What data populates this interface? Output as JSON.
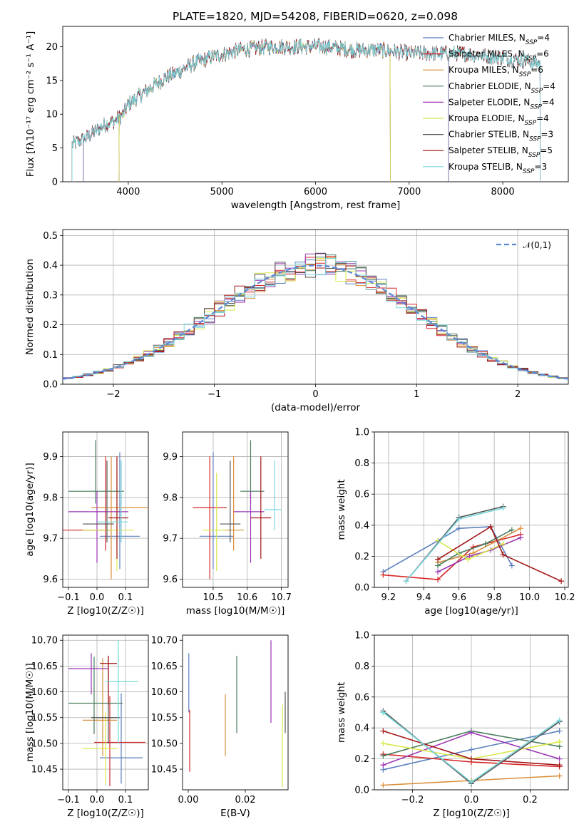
{
  "figure": {
    "title": "PLATE=1820, MJD=54208, FIBERID=0620, z=0.098"
  },
  "colors": {
    "c0": "#5b7fbf",
    "c1": "#d62728",
    "c2": "#d98f3a",
    "c3": "#4b7d5e",
    "c4": "#9b36b5",
    "c5": "#d8e84a",
    "c6": "#555555",
    "c7": "#a31515",
    "c8": "#7ad8dc",
    "gauss": "#5b87d6"
  },
  "chart_data": [
    {
      "id": "spectrum",
      "type": "line",
      "title": "PLATE=1820, MJD=54208, FIBERID=0620, z=0.098",
      "xlabel": "wavelength [Angstrom, rest frame]",
      "ylabel": "Flux [fλ10⁻¹⁷ erg cm⁻² s⁻¹ A⁻¹]",
      "xlim": [
        3300,
        8700
      ],
      "ylim": [
        0,
        23
      ],
      "xticks": [
        4000,
        5000,
        6000,
        7000,
        8000
      ],
      "yticks": [
        0,
        5,
        10,
        15,
        20
      ],
      "grid": false,
      "legend_position": "right",
      "legend": [
        "Chabrier MILES, N_SSP=4",
        "Salpeter MILES, N_SSP=6",
        "Kroupa MILES, N_SSP=6",
        "Chabrier ELODIE, N_SSP=4",
        "Salpeter ELODIE, N_SSP=4",
        "Kroupa ELODIE, N_SSP=4",
        "Chabrier STELIB, N_SSP=3",
        "Salpeter STELIB, N_SSP=5",
        "Kroupa STELIB, N_SSP=3"
      ],
      "continuum": {
        "x": [
          3400,
          3550,
          3650,
          3750,
          3850,
          3950,
          4000,
          4100,
          4250,
          4400,
          4500,
          4700,
          4900,
          5200,
          5500,
          5800,
          6100,
          6400,
          6700,
          7000,
          7300,
          7600,
          7900,
          8200,
          8400
        ],
        "y": [
          5.5,
          6.5,
          7.5,
          8.5,
          9.0,
          10.0,
          11.5,
          12.5,
          14.0,
          15.5,
          16.0,
          17.5,
          18.5,
          19.5,
          20.0,
          20.0,
          20.0,
          19.5,
          19.5,
          19.0,
          19.0,
          19.0,
          18.5,
          18.0,
          17.5
        ]
      },
      "model_ranges": [
        [
          3520,
          7420
        ],
        [
          3520,
          7420
        ],
        [
          3520,
          7420
        ],
        [
          3900,
          6800
        ],
        [
          3900,
          6800
        ],
        [
          3900,
          6800
        ],
        [
          3400,
          8400
        ],
        [
          3400,
          8400
        ],
        [
          3400,
          8400
        ]
      ]
    },
    {
      "id": "residual_hist",
      "type": "line",
      "xlabel": "(data-model)/error",
      "ylabel": "Normed distribution",
      "xlim": [
        -2.5,
        2.5
      ],
      "ylim": [
        0,
        0.52
      ],
      "xticks": [
        -2,
        -1,
        0,
        1,
        2
      ],
      "yticks": [
        0,
        0.1,
        0.2,
        0.3,
        0.4,
        0.5
      ],
      "grid": true,
      "legend_position": "upper right",
      "legend": [
        "𝒩(0,1)"
      ],
      "bin_width": 0.1,
      "note_values": "per-bin normalized counts for 9 model fits, centred on the standard normal density"
    },
    {
      "id": "age_vs_Z",
      "type": "scatter",
      "xlabel": "Z [log10(Z/Z☉)]",
      "ylabel": "age  [log10(age/yr)]",
      "xlim": [
        -0.12,
        0.18
      ],
      "ylim": [
        9.58,
        9.96
      ],
      "xticks": [
        -0.1,
        0.0,
        0.1
      ],
      "yticks": [
        9.6,
        9.7,
        9.8,
        9.9
      ],
      "grid": true,
      "points": [
        {
          "x": 0.08,
          "xerr": [
            0.07,
            0.07
          ],
          "y": 9.705,
          "yerr": [
            0.08,
            0.205
          ]
        },
        {
          "x": 0.03,
          "xerr": [
            0.15,
            0.02
          ],
          "y": 9.72,
          "yerr": [
            0.05,
            0.18
          ]
        },
        {
          "x": 0.05,
          "xerr": [
            0.07,
            0.13
          ],
          "y": 9.775,
          "yerr": [
            0.175,
            0.125
          ]
        },
        {
          "x": -0.005,
          "xerr": [
            0.095,
            0.1
          ],
          "y": 9.815,
          "yerr": [
            0.03,
            0.125
          ]
        },
        {
          "x": 0.0,
          "xerr": [
            0.1,
            0.11
          ],
          "y": 9.765,
          "yerr": [
            0.125,
            0.05
          ]
        },
        {
          "x": 0.07,
          "xerr": [
            0.12,
            0.06
          ],
          "y": 9.72,
          "yerr": [
            0.1,
            0.14
          ]
        },
        {
          "x": 0.035,
          "xerr": [
            0.085,
            0.025
          ],
          "y": 9.735,
          "yerr": [
            0.045,
            0.155
          ]
        },
        {
          "x": 0.07,
          "xerr": [
            0.03,
            0.04
          ],
          "y": 9.75,
          "yerr": [
            0.1,
            0.15
          ]
        },
        {
          "x": 0.085,
          "xerr": [
            0.085,
            0.025
          ],
          "y": 9.74,
          "yerr": [
            0.05,
            0.15
          ]
        }
      ]
    },
    {
      "id": "age_vs_mass",
      "type": "scatter",
      "xlabel": "mass [log10(M/M☉)]",
      "ylabel": "",
      "xlim": [
        10.41,
        10.72
      ],
      "ylim": [
        9.58,
        9.96
      ],
      "xticks": [
        10.5,
        10.6,
        10.7
      ],
      "yticks": [
        9.6,
        9.7,
        9.8,
        9.9
      ],
      "grid": true,
      "points": [
        {
          "x": 10.5,
          "xerr": [
            0.04,
            0.06
          ],
          "y": 9.705,
          "yerr": [
            0.08,
            0.205
          ]
        },
        {
          "x": 10.49,
          "xerr": [
            0.05,
            0.05
          ],
          "y": 9.775,
          "yerr": [
            0.175,
            0.125
          ]
        },
        {
          "x": 10.56,
          "xerr": [
            0.03,
            0.03
          ],
          "y": 9.72,
          "yerr": [
            0.05,
            0.18
          ]
        },
        {
          "x": 10.61,
          "xerr": [
            0.03,
            0.04
          ],
          "y": 9.815,
          "yerr": [
            0.03,
            0.125
          ]
        },
        {
          "x": 10.61,
          "xerr": [
            0.05,
            0.04
          ],
          "y": 9.765,
          "yerr": [
            0.125,
            0.05
          ]
        },
        {
          "x": 10.51,
          "xerr": [
            0.04,
            0.03
          ],
          "y": 9.72,
          "yerr": [
            0.1,
            0.14
          ]
        },
        {
          "x": 10.55,
          "xerr": [
            0.03,
            0.03
          ],
          "y": 9.735,
          "yerr": [
            0.045,
            0.155
          ]
        },
        {
          "x": 10.64,
          "xerr": [
            0.03,
            0.03
          ],
          "y": 9.75,
          "yerr": [
            0.1,
            0.15
          ]
        },
        {
          "x": 10.68,
          "xerr": [
            0.03,
            0.02
          ],
          "y": 9.77,
          "yerr": [
            0.05,
            0.12
          ]
        }
      ]
    },
    {
      "id": "massweight_vs_age",
      "type": "line",
      "xlabel": "age  [log10(age/yr)]",
      "ylabel": "mass weight",
      "xlim": [
        9.12,
        10.22
      ],
      "ylim": [
        0,
        1.0
      ],
      "xticks": [
        9.2,
        9.4,
        9.6,
        9.8,
        10.0,
        10.2
      ],
      "yticks": [
        0,
        0.2,
        0.4,
        0.6,
        0.8,
        1.0
      ],
      "grid": true,
      "series": [
        {
          "x": [
            9.17,
            9.48,
            9.6,
            9.78,
            9.9
          ],
          "y": [
            0.1,
            0.3,
            0.38,
            0.39,
            0.14
          ]
        },
        {
          "x": [
            9.17,
            9.48,
            9.68,
            9.95
          ],
          "y": [
            0.08,
            0.05,
            0.26,
            0.34
          ]
        },
        {
          "x": [
            9.48,
            9.68,
            9.95
          ],
          "y": [
            0.16,
            0.22,
            0.38
          ]
        },
        {
          "x": [
            9.48,
            9.6,
            9.75,
            9.9
          ],
          "y": [
            0.14,
            0.22,
            0.28,
            0.37
          ]
        },
        {
          "x": [
            9.48,
            9.66,
            9.78,
            9.95
          ],
          "y": [
            0.1,
            0.2,
            0.24,
            0.32
          ]
        },
        {
          "x": [
            9.48,
            9.65,
            9.85
          ],
          "y": [
            0.3,
            0.18,
            0.28
          ]
        },
        {
          "x": [
            9.3,
            9.6,
            9.85
          ],
          "y": [
            0.04,
            0.45,
            0.52
          ]
        },
        {
          "x": [
            9.48,
            9.78,
            9.85,
            10.18
          ],
          "y": [
            0.18,
            0.39,
            0.21,
            0.04
          ]
        },
        {
          "x": [
            9.3,
            9.6,
            9.85
          ],
          "y": [
            0.04,
            0.44,
            0.51
          ]
        }
      ]
    },
    {
      "id": "mass_vs_Z",
      "type": "scatter",
      "xlabel": "Z [log10(Z/Z☉)]",
      "ylabel": "mass [log10(M/M☉)]",
      "xlim": [
        -0.12,
        0.18
      ],
      "ylim": [
        10.41,
        10.71
      ],
      "xticks": [
        -0.1,
        0.0,
        0.1
      ],
      "yticks": [
        10.45,
        10.5,
        10.55,
        10.6,
        10.65,
        10.7
      ],
      "grid": true,
      "points": [
        {
          "x": 0.085,
          "xerr": [
            0.075,
            0.075
          ],
          "y": 10.472,
          "yerr": [
            0.05,
            0.125
          ]
        },
        {
          "x": 0.045,
          "xerr": [
            0.055,
            0.125
          ],
          "y": 10.502,
          "yerr": [
            0.085,
            0.09
          ]
        },
        {
          "x": 0.02,
          "xerr": [
            0.07,
            0.05
          ],
          "y": 10.545,
          "yerr": [
            0.07,
            0.12
          ]
        },
        {
          "x": -0.01,
          "xerr": [
            0.09,
            0.1
          ],
          "y": 10.578,
          "yerr": [
            0.06,
            0.09
          ]
        },
        {
          "x": -0.02,
          "xerr": [
            0.08,
            0.06
          ],
          "y": 10.645,
          "yerr": [
            0.05,
            0.03
          ]
        },
        {
          "x": 0.03,
          "xerr": [
            0.08,
            0.04
          ],
          "y": 10.49,
          "yerr": [
            0.07,
            0.07
          ]
        },
        {
          "x": 0.04,
          "xerr": [
            0.06,
            0.04
          ],
          "y": 10.55,
          "yerr": [
            0.05,
            0.12
          ]
        },
        {
          "x": 0.04,
          "xerr": [
            0.03,
            0.03
          ],
          "y": 10.655,
          "yerr": [
            0.08,
            0.015
          ]
        },
        {
          "x": 0.075,
          "xerr": [
            0.045,
            0.07
          ],
          "y": 10.62,
          "yerr": [
            0.12,
            0.08
          ]
        }
      ]
    },
    {
      "id": "mass_vs_ebv",
      "type": "scatter",
      "xlabel": "E(B-V)",
      "ylabel": "",
      "xlim": [
        -0.002,
        0.035
      ],
      "ylim": [
        10.41,
        10.71
      ],
      "xticks": [
        0.0,
        0.02
      ],
      "yticks": [
        10.45,
        10.5,
        10.55,
        10.6,
        10.65,
        10.7
      ],
      "grid": false,
      "points": [
        {
          "x": 0.0002,
          "y": 10.62,
          "yerr": [
            0.06,
            0.055
          ]
        },
        {
          "x": 0.0005,
          "y": 10.505,
          "yerr": [
            0.06,
            0.06
          ]
        },
        {
          "x": 0.013,
          "y": 10.535,
          "yerr": [
            0.06,
            0.06
          ]
        },
        {
          "x": 0.017,
          "y": 10.59,
          "yerr": [
            0.07,
            0.08
          ]
        },
        {
          "x": 0.029,
          "y": 10.62,
          "yerr": [
            0.08,
            0.08
          ]
        },
        {
          "x": 0.033,
          "y": 10.495,
          "yerr": [
            0.08,
            0.08
          ]
        },
        {
          "x": 0.034,
          "y": 10.56,
          "yerr": [
            0.04,
            0.04
          ]
        }
      ]
    },
    {
      "id": "massweight_vs_Z",
      "type": "line",
      "xlabel": "Z [log10(Z/Z☉)]",
      "ylabel": "mass weight",
      "xlim": [
        -0.33,
        0.33
      ],
      "ylim": [
        0,
        1.0
      ],
      "xticks": [
        -0.2,
        0.0,
        0.2
      ],
      "yticks": [
        0,
        0.2,
        0.4,
        0.6,
        0.8,
        1.0
      ],
      "grid": true,
      "series": [
        {
          "x": [
            -0.3,
            0.0,
            0.3
          ],
          "y": [
            0.13,
            0.26,
            0.38
          ]
        },
        {
          "x": [
            -0.3,
            0.0,
            0.3
          ],
          "y": [
            0.23,
            0.18,
            0.15
          ]
        },
        {
          "x": [
            -0.3,
            0.0,
            0.3
          ],
          "y": [
            0.03,
            0.06,
            0.09
          ]
        },
        {
          "x": [
            -0.3,
            0.0,
            0.3
          ],
          "y": [
            0.22,
            0.38,
            0.28
          ]
        },
        {
          "x": [
            -0.3,
            0.0,
            0.3
          ],
          "y": [
            0.16,
            0.37,
            0.2
          ]
        },
        {
          "x": [
            -0.3,
            0.0,
            0.3
          ],
          "y": [
            0.3,
            0.2,
            0.31
          ]
        },
        {
          "x": [
            -0.3,
            0.0,
            0.3
          ],
          "y": [
            0.51,
            0.04,
            0.44
          ]
        },
        {
          "x": [
            -0.3,
            0.0,
            0.3
          ],
          "y": [
            0.38,
            0.2,
            0.16
          ]
        },
        {
          "x": [
            -0.3,
            0.0,
            0.3
          ],
          "y": [
            0.5,
            0.05,
            0.45
          ]
        }
      ]
    }
  ]
}
